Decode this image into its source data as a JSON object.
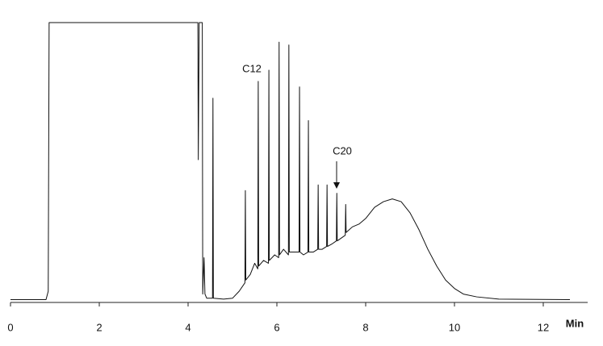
{
  "chart_data": {
    "type": "line",
    "x_label": "Min",
    "annotations": [
      "C12",
      "C20"
    ],
    "xlim": [
      0,
      13
    ],
    "xticks": [
      0,
      2,
      4,
      6,
      8,
      10,
      12
    ],
    "ylim": [
      0,
      100
    ],
    "x": [
      0,
      0.8,
      0.85,
      0.87,
      4.22,
      4.23,
      4.25,
      4.32,
      4.33,
      4.36,
      4.38,
      4.42,
      4.55,
      4.56,
      4.57,
      4.8,
      5.0,
      5.15,
      5.28,
      5.29,
      5.3,
      5.4,
      5.5,
      5.57,
      5.58,
      5.59,
      5.7,
      5.81,
      5.82,
      5.83,
      5.95,
      6.04,
      6.05,
      6.06,
      6.15,
      6.26,
      6.27,
      6.28,
      6.4,
      6.5,
      6.51,
      6.52,
      6.6,
      6.7,
      6.71,
      6.72,
      6.82,
      6.92,
      6.93,
      6.94,
      7.02,
      7.12,
      7.13,
      7.14,
      7.25,
      7.34,
      7.35,
      7.36,
      7.45,
      7.54,
      7.55,
      7.56,
      7.7,
      7.85,
      8.0,
      8.2,
      8.4,
      8.6,
      8.8,
      9.0,
      9.2,
      9.4,
      9.6,
      9.8,
      10.0,
      10.2,
      10.5,
      11.0,
      12.6
    ],
    "series": [
      {
        "color": "#111111",
        "values": [
          1,
          1,
          4,
          100,
          100,
          51,
          100,
          100,
          3,
          16,
          3,
          1.5,
          1.5,
          73,
          1.5,
          1.2,
          1.5,
          4,
          7,
          40,
          8,
          10,
          14,
          12,
          79,
          13,
          15,
          14,
          83,
          15,
          17,
          16,
          93,
          17,
          19,
          17,
          92,
          18,
          18,
          18,
          77,
          18,
          17,
          18,
          65,
          18,
          18,
          19,
          42,
          19,
          19,
          20,
          42,
          20,
          21,
          22,
          39,
          22,
          23,
          24,
          35,
          25,
          27,
          28,
          30,
          34,
          36,
          37,
          36,
          32,
          26,
          19,
          13,
          8,
          5,
          3,
          2,
          1.2,
          1
        ]
      }
    ]
  }
}
